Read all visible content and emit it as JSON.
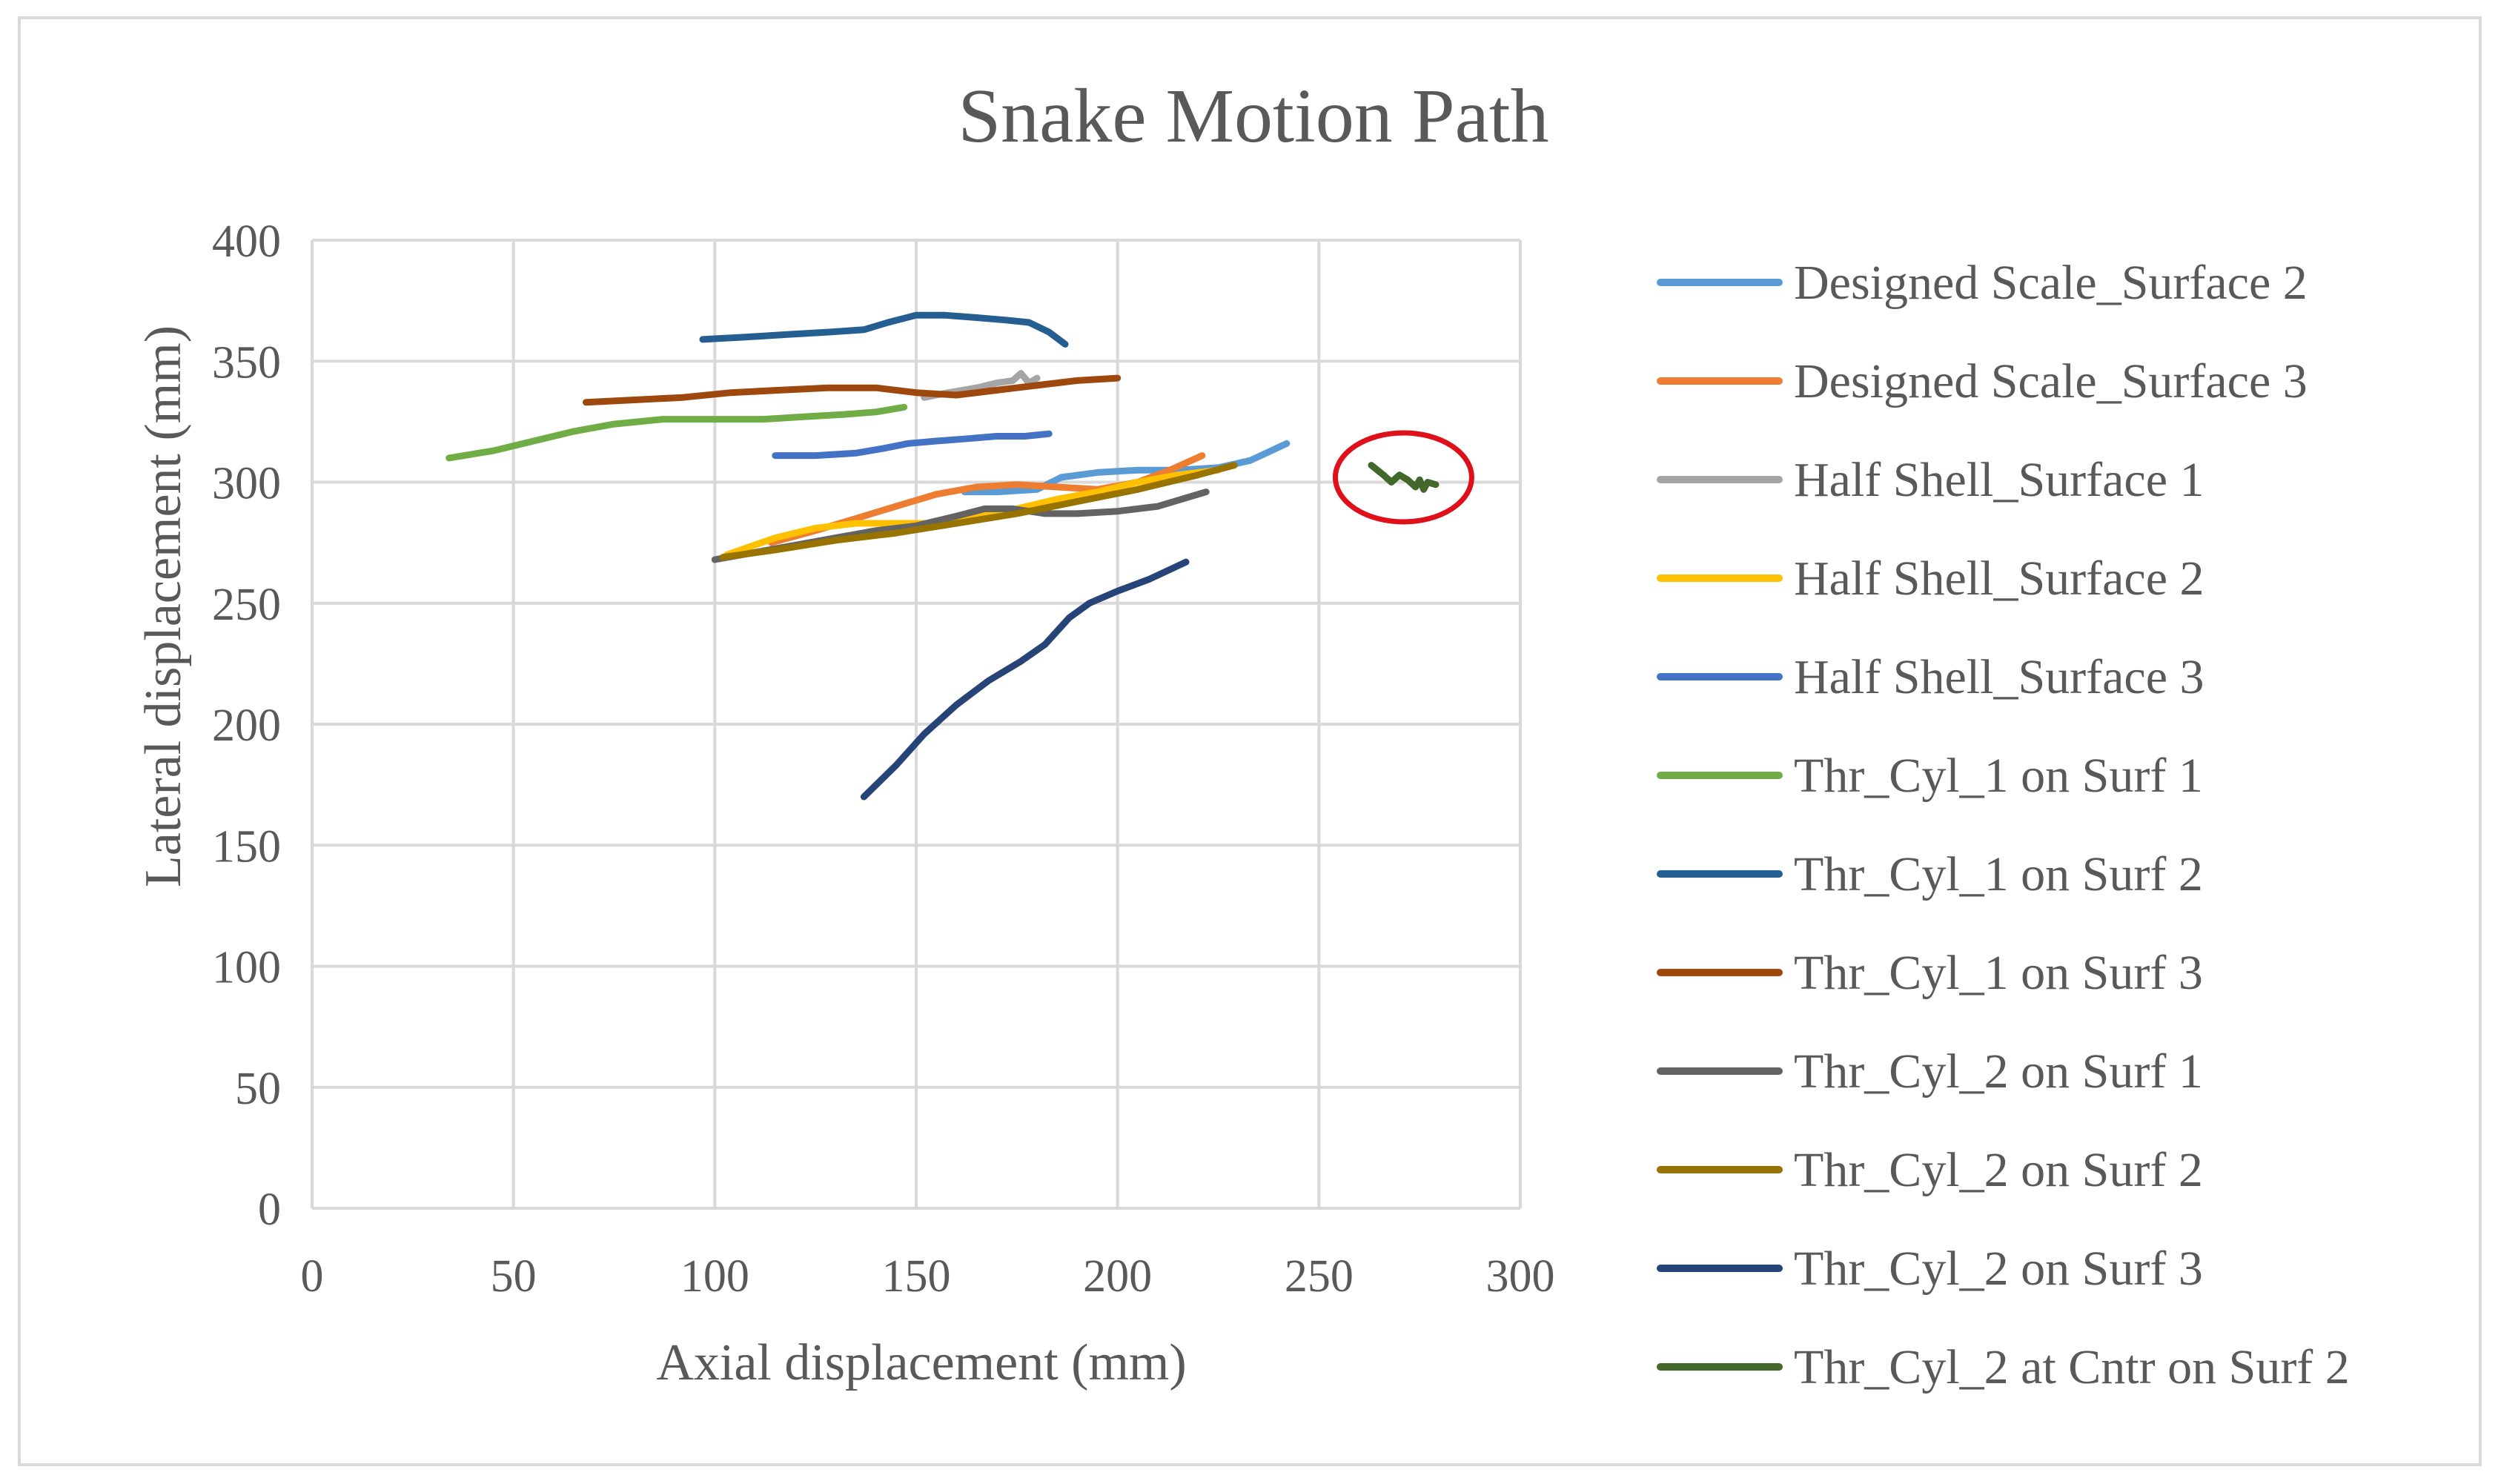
{
  "chart_data": {
    "type": "line",
    "title": "Snake Motion Path",
    "xlabel": "Axial displacement (mm)",
    "ylabel": "Lateral displacement (mm)",
    "xlim": [
      0,
      300
    ],
    "ylim": [
      0,
      400
    ],
    "xticks": [
      0,
      50,
      100,
      150,
      200,
      250,
      300
    ],
    "yticks": [
      0,
      50,
      100,
      150,
      200,
      250,
      300,
      350,
      400
    ],
    "grid": true,
    "legend_position": "right",
    "annotation": "red circle around Thr_Cyl_2 at Cntr on Surf 2",
    "series": [
      {
        "name": "Designed Scale_Surface 2",
        "color": "#5b9bd5",
        "points": [
          [
            162,
            296
          ],
          [
            170,
            296
          ],
          [
            180,
            297
          ],
          [
            186,
            302
          ],
          [
            195,
            304
          ],
          [
            205,
            305
          ],
          [
            215,
            305
          ],
          [
            225,
            306
          ],
          [
            233,
            309
          ],
          [
            242,
            316
          ]
        ]
      },
      {
        "name": "Designed Scale_Surface 3",
        "color": "#ed7d31",
        "points": [
          [
            114,
            275
          ],
          [
            125,
            280
          ],
          [
            135,
            285
          ],
          [
            145,
            290
          ],
          [
            155,
            295
          ],
          [
            165,
            298
          ],
          [
            175,
            299
          ],
          [
            185,
            298
          ],
          [
            195,
            297
          ],
          [
            205,
            300
          ],
          [
            213,
            305
          ],
          [
            221,
            311
          ]
        ]
      },
      {
        "name": "Half Shell_Surface 1",
        "color": "#a5a5a5",
        "points": [
          [
            152,
            335
          ],
          [
            158,
            337
          ],
          [
            165,
            339
          ],
          [
            170,
            341
          ],
          [
            174,
            342
          ],
          [
            176,
            345
          ],
          [
            178,
            341
          ],
          [
            180,
            343
          ]
        ]
      },
      {
        "name": "Half Shell_Surface 2",
        "color": "#ffc000",
        "points": [
          [
            103,
            270
          ],
          [
            115,
            277
          ],
          [
            125,
            281
          ],
          [
            135,
            283
          ],
          [
            145,
            283
          ],
          [
            155,
            283
          ],
          [
            165,
            286
          ],
          [
            175,
            289
          ],
          [
            185,
            293
          ],
          [
            195,
            296
          ],
          [
            205,
            300
          ],
          [
            215,
            303
          ],
          [
            225,
            305
          ]
        ]
      },
      {
        "name": "Half Shell_Surface 3",
        "color": "#4472c4",
        "points": [
          [
            115,
            311
          ],
          [
            125,
            311
          ],
          [
            135,
            312
          ],
          [
            142,
            314
          ],
          [
            148,
            316
          ],
          [
            155,
            317
          ],
          [
            163,
            318
          ],
          [
            170,
            319
          ],
          [
            177,
            319
          ],
          [
            183,
            320
          ]
        ]
      },
      {
        "name": "Thr_Cyl_1 on Surf 1",
        "color": "#70ad47",
        "points": [
          [
            34,
            310
          ],
          [
            45,
            313
          ],
          [
            55,
            317
          ],
          [
            65,
            321
          ],
          [
            75,
            324
          ],
          [
            87,
            326
          ],
          [
            100,
            326
          ],
          [
            112,
            326
          ],
          [
            122,
            327
          ],
          [
            132,
            328
          ],
          [
            140,
            329
          ],
          [
            147,
            331
          ]
        ]
      },
      {
        "name": "Thr_Cyl_1 on Surf 2",
        "color": "#255e91",
        "points": [
          [
            97,
            359
          ],
          [
            108,
            360
          ],
          [
            118,
            361
          ],
          [
            128,
            362
          ],
          [
            137,
            363
          ],
          [
            143,
            366
          ],
          [
            150,
            369
          ],
          [
            157,
            369
          ],
          [
            165,
            368
          ],
          [
            172,
            367
          ],
          [
            178,
            366
          ],
          [
            183,
            362
          ],
          [
            187,
            357
          ]
        ]
      },
      {
        "name": "Thr_Cyl_1 on Surf 3",
        "color": "#9e480e",
        "points": [
          [
            68,
            333
          ],
          [
            80,
            334
          ],
          [
            92,
            335
          ],
          [
            104,
            337
          ],
          [
            116,
            338
          ],
          [
            128,
            339
          ],
          [
            140,
            339
          ],
          [
            150,
            337
          ],
          [
            160,
            336
          ],
          [
            170,
            338
          ],
          [
            180,
            340
          ],
          [
            190,
            342
          ],
          [
            200,
            343
          ]
        ]
      },
      {
        "name": "Thr_Cyl_2 on Surf 1",
        "color": "#636363",
        "points": [
          [
            100,
            268
          ],
          [
            110,
            271
          ],
          [
            120,
            274
          ],
          [
            130,
            277
          ],
          [
            140,
            280
          ],
          [
            150,
            282
          ],
          [
            160,
            286
          ],
          [
            167,
            289
          ],
          [
            174,
            289
          ],
          [
            182,
            287
          ],
          [
            190,
            287
          ],
          [
            200,
            288
          ],
          [
            210,
            290
          ],
          [
            222,
            296
          ]
        ]
      },
      {
        "name": "Thr_Cyl_2 on Surf 2",
        "color": "#997300",
        "points": [
          [
            102,
            269
          ],
          [
            115,
            272
          ],
          [
            130,
            276
          ],
          [
            145,
            279
          ],
          [
            160,
            283
          ],
          [
            175,
            287
          ],
          [
            190,
            292
          ],
          [
            205,
            297
          ],
          [
            220,
            303
          ],
          [
            229,
            307
          ]
        ]
      },
      {
        "name": "Thr_Cyl_2 on Surf 3",
        "color": "#264478",
        "points": [
          [
            137,
            170
          ],
          [
            145,
            183
          ],
          [
            152,
            196
          ],
          [
            160,
            208
          ],
          [
            168,
            218
          ],
          [
            176,
            226
          ],
          [
            182,
            233
          ],
          [
            188,
            244
          ],
          [
            193,
            250
          ],
          [
            200,
            255
          ],
          [
            208,
            260
          ],
          [
            217,
            267
          ]
        ]
      },
      {
        "name": "Thr_Cyl_2 at Cntr on Surf 2",
        "color": "#43682b",
        "points": [
          [
            263,
            307
          ],
          [
            266,
            303
          ],
          [
            268,
            300
          ],
          [
            270,
            303
          ],
          [
            272,
            301
          ],
          [
            274,
            298
          ],
          [
            275,
            301
          ],
          [
            276,
            297
          ],
          [
            277,
            300
          ],
          [
            279,
            299
          ]
        ]
      }
    ]
  }
}
